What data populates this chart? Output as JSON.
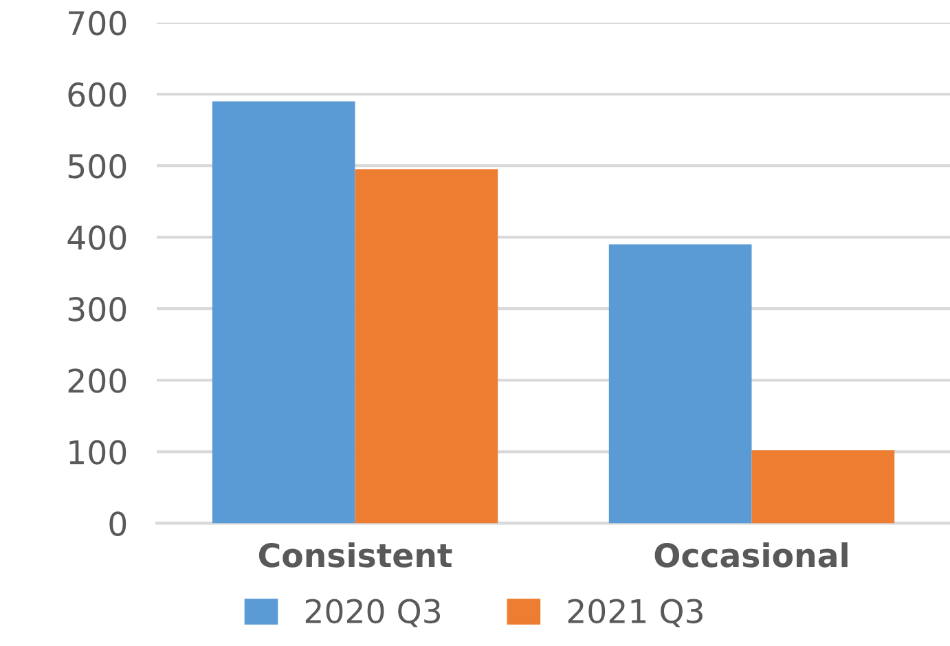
{
  "chart_data": {
    "type": "bar",
    "categories": [
      "Consistent",
      "Occasional"
    ],
    "series": [
      {
        "name": "2020 Q3",
        "color": "#5b9bd5",
        "values": [
          590,
          390
        ]
      },
      {
        "name": "2021 Q3",
        "color": "#ed7d31",
        "values": [
          495,
          102
        ]
      }
    ],
    "ylim": [
      0,
      700
    ],
    "yticks": [
      0,
      100,
      200,
      300,
      400,
      500,
      600,
      700
    ],
    "grid": "y",
    "legend": "bottom"
  }
}
